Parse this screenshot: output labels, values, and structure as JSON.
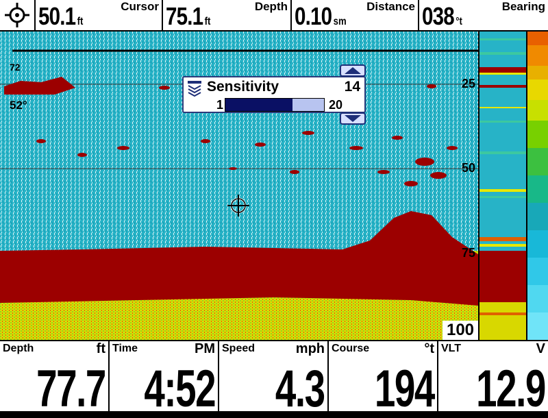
{
  "top_bar": {
    "cursor": {
      "label": "Cursor",
      "value": "50.1",
      "unit": "ft"
    },
    "depth": {
      "label": "Depth",
      "value": "75.1",
      "unit": "ft"
    },
    "distance": {
      "label": "Distance",
      "value": "0.10",
      "unit": "sm"
    },
    "bearing": {
      "label": "Bearing",
      "value": "038",
      "unit": "°t"
    }
  },
  "sonar": {
    "top_value": "72",
    "water_temp": "52°",
    "depth_scale": [
      "25",
      "50",
      "75",
      "100"
    ]
  },
  "sensitivity_popup": {
    "title": "Sensitivity",
    "value": "14",
    "min": "1",
    "max": "20",
    "fraction": 0.684
  },
  "bottom_bar": {
    "depth": {
      "label": "Depth",
      "unit": "ft",
      "value": "77.7"
    },
    "time": {
      "label": "Time",
      "unit": "PM",
      "value": "4:52"
    },
    "speed": {
      "label": "Speed",
      "unit": "mph",
      "value": "4.3"
    },
    "course": {
      "label": "Course",
      "unit": "°t",
      "value": "194"
    },
    "vlt": {
      "label": "VLT",
      "unit": "V",
      "value": "12.9"
    }
  },
  "colors": {
    "water": "#27b3c7",
    "return_strong": "#9c0000",
    "return_mid": "#e8e800",
    "ui_accent": "#1e2e78"
  }
}
